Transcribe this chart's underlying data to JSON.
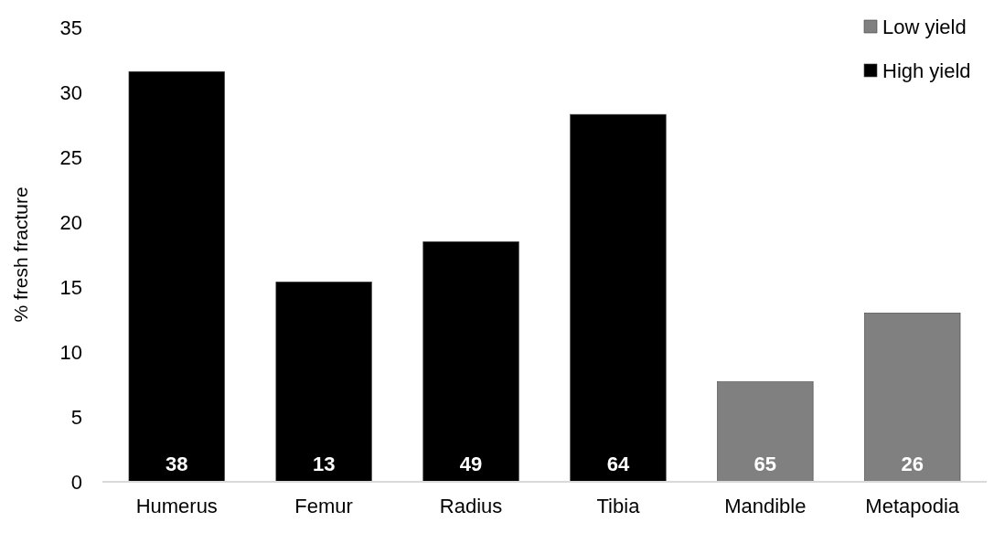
{
  "chart_data": {
    "type": "bar",
    "ylabel": "% fresh fracture",
    "categories": [
      "Humerus",
      "Femur",
      "Radius",
      "Tibia",
      "Mandible",
      "Metapodia"
    ],
    "series": [
      {
        "name": "Low yield",
        "color": "#808080",
        "values": [
          null,
          null,
          null,
          null,
          7.7,
          13.0
        ]
      },
      {
        "name": "High yield",
        "color": "#000000",
        "values": [
          31.6,
          15.4,
          18.5,
          28.3,
          null,
          null
        ]
      }
    ],
    "ylim": [
      0,
      35
    ],
    "yticks": [
      0,
      5,
      10,
      15,
      20,
      25,
      30,
      35
    ],
    "grid": false,
    "legend": "top right",
    "annotations": [
      {
        "text": "38",
        "x": "Humerus",
        "y": 0
      },
      {
        "text": "13",
        "x": "Femur",
        "y": 0
      },
      {
        "text": "49",
        "x": "Radius",
        "y": 0
      },
      {
        "text": "64",
        "x": "Tibia",
        "y": 0
      },
      {
        "text": "65",
        "x": "Mandible",
        "y": 0
      },
      {
        "text": "26",
        "x": "Metapodia",
        "y": 0
      }
    ]
  }
}
